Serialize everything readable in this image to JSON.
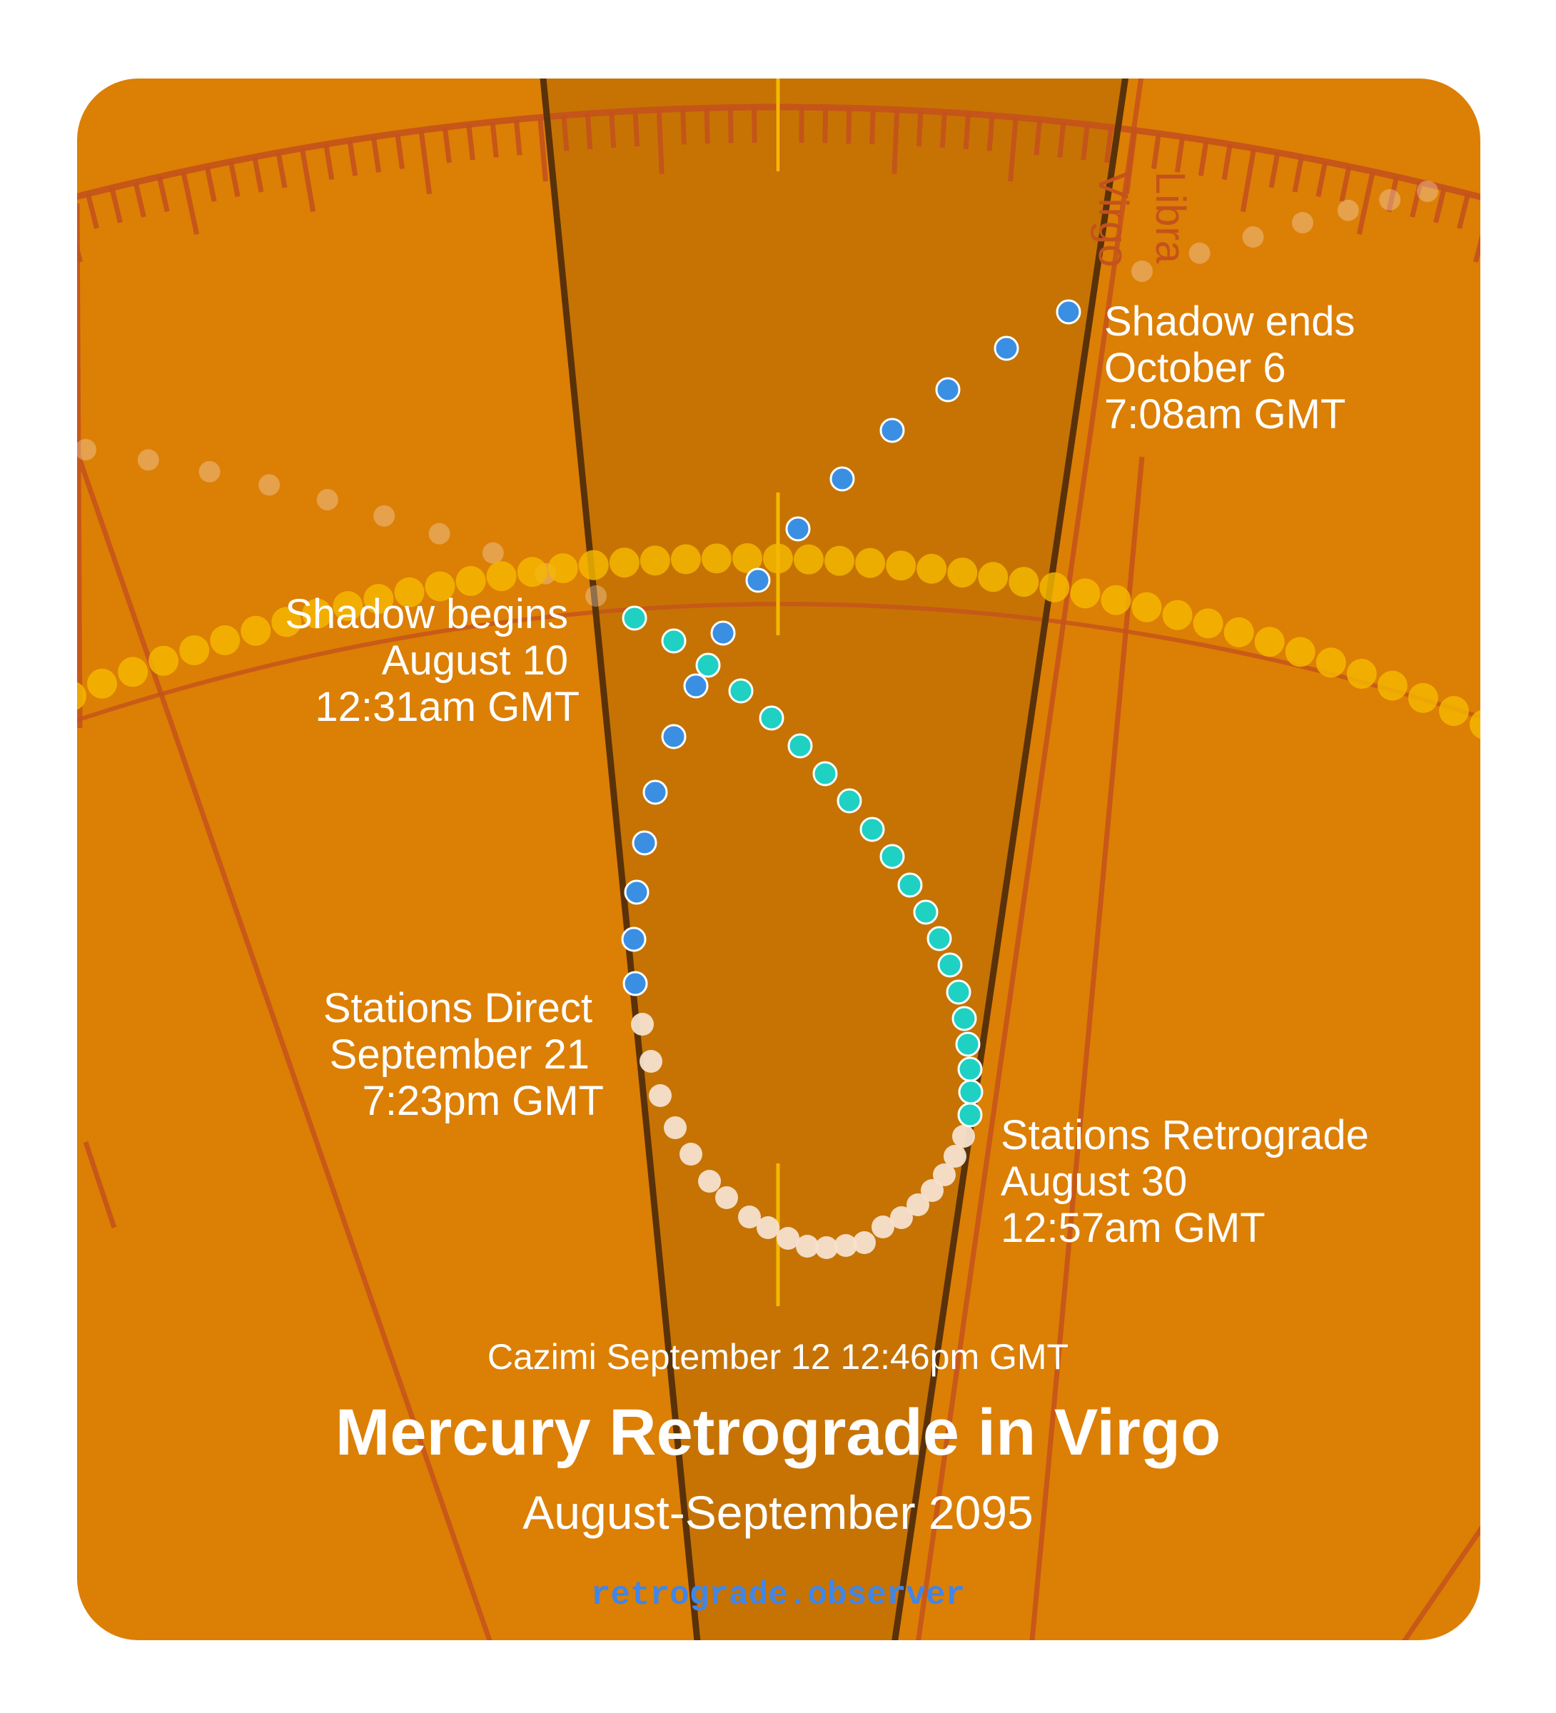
{
  "title": "Mercury Retrograde in Virgo",
  "subtitle": "August-September 2095",
  "cazimi": "Cazimi September 12 12:46pm GMT",
  "site": "retrograde.observer",
  "signs": {
    "current": "Virgo",
    "next": "Libra"
  },
  "events": {
    "shadow_begins": {
      "label": "Shadow begins",
      "date": "August 10",
      "time": "12:31am GMT"
    },
    "stations_retrograde": {
      "label": "Stations Retrograde",
      "date": "August 30",
      "time": "12:57am GMT"
    },
    "stations_direct": {
      "label": "Stations Direct",
      "date": "September 21",
      "time": "7:23pm GMT"
    },
    "shadow_ends": {
      "label": "Shadow ends",
      "date": "October 6",
      "time": "7:08am GMT"
    }
  },
  "colors": {
    "background": "#dc7f05",
    "sign_band": "#c67304",
    "boundary": "#5a3209",
    "grid_line": "#c4521c",
    "sun_path": "#f5b800",
    "direct_pre": "#3a8fe3",
    "retrograde": "#1fd1c2",
    "direct_post": "#f5e2cd",
    "text": "#ffffff",
    "site_text": "#3f86e8"
  }
}
